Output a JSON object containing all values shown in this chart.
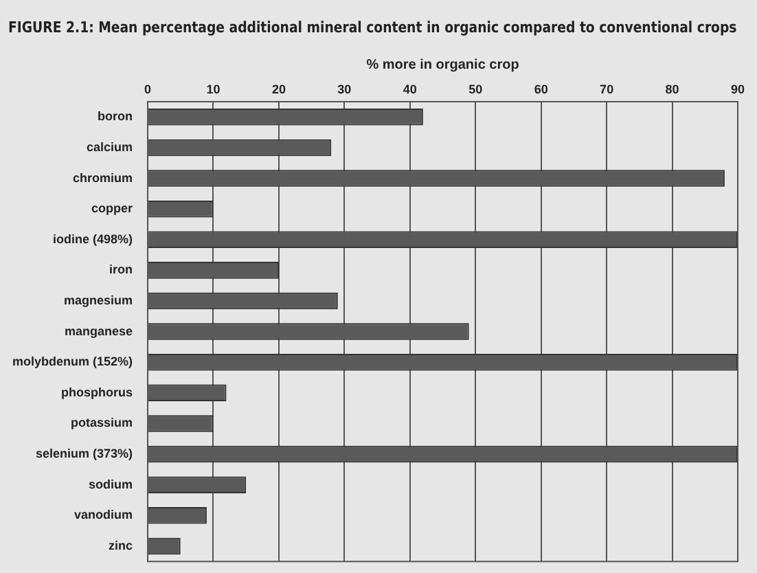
{
  "chart_data": {
    "type": "bar",
    "orientation": "horizontal",
    "title": "FIGURE 2.1: Mean percentage additional mineral content in organic compared to conventional crops",
    "xlabel": "% more in organic crop",
    "categories": [
      "boron",
      "calcium",
      "chromium",
      "copper",
      "iodine (498%)",
      "iron",
      "magnesium",
      "manganese",
      "molybdenum (152%)",
      "phosphorus",
      "potassium",
      "selenium (373%)",
      "sodium",
      "vanodium",
      "zinc"
    ],
    "values": [
      42,
      28,
      88,
      10,
      90,
      20,
      29,
      49,
      90,
      12,
      10,
      90,
      15,
      9,
      5
    ],
    "color": "#5a5a5a",
    "xlim": [
      0,
      90
    ],
    "xticks": [
      0,
      10,
      20,
      30,
      40,
      50,
      60,
      70,
      80,
      90
    ],
    "grid": "x",
    "legend": false
  }
}
